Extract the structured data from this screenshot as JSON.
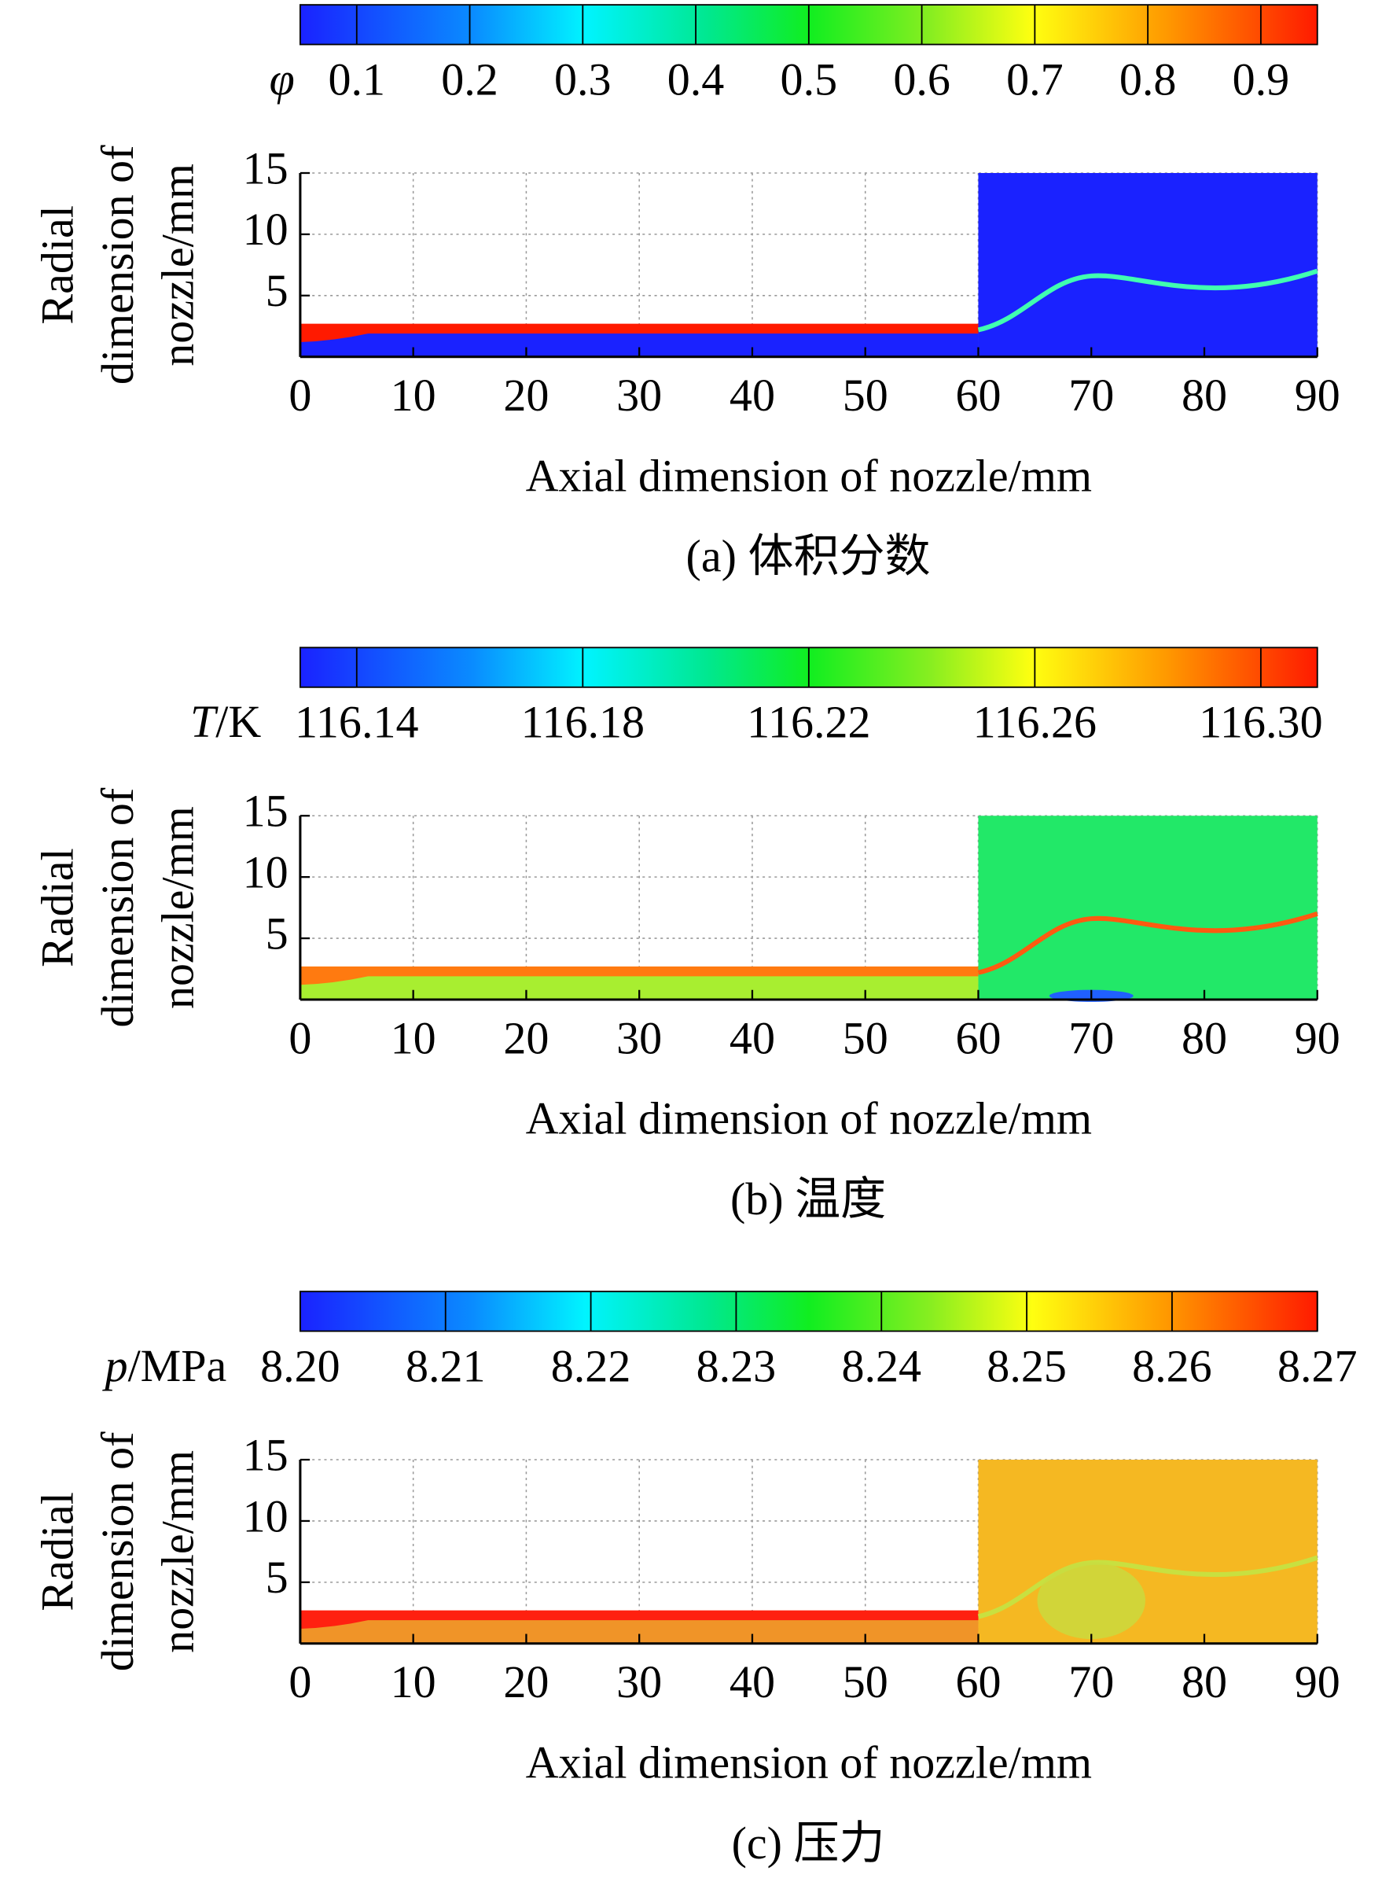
{
  "chart_data": [
    {
      "type": "contour",
      "colorbar": {
        "symbol": "φ",
        "clim": [
          0.05,
          0.95
        ],
        "ticks": [
          0.1,
          0.2,
          0.3,
          0.4,
          0.5,
          0.6,
          0.7,
          0.8,
          0.9
        ]
      },
      "xlabel": "Axial dimension of nozzle/mm",
      "ylabel": [
        "Radial",
        "dimension of",
        "nozzle/mm"
      ],
      "xlim": [
        0,
        90
      ],
      "xticks": [
        0,
        10,
        20,
        30,
        40,
        50,
        60,
        70,
        80,
        90
      ],
      "ylim": [
        0,
        15
      ],
      "yticks": [
        5,
        10,
        15
      ],
      "grid": true,
      "caption": "(a) 体积分数"
    },
    {
      "type": "contour",
      "colorbar": {
        "symbol": "T",
        "unit": "/K",
        "clim": [
          116.13,
          116.31
        ],
        "ticks": [
          116.14,
          116.18,
          116.22,
          116.26,
          {
            "value": 116.3,
            "label": "116.30"
          }
        ]
      },
      "xlabel": "Axial dimension of nozzle/mm",
      "ylabel": [
        "Radial",
        "dimension of",
        "nozzle/mm"
      ],
      "xlim": [
        0,
        90
      ],
      "xticks": [
        0,
        10,
        20,
        30,
        40,
        50,
        60,
        70,
        80,
        90
      ],
      "ylim": [
        0,
        15
      ],
      "yticks": [
        5,
        10,
        15
      ],
      "grid": true,
      "caption": "(b) 温度"
    },
    {
      "type": "contour",
      "colorbar": {
        "symbol": "p",
        "unit": "/MPa",
        "clim": [
          8.2,
          8.27
        ],
        "ticks": [
          {
            "value": 8.2,
            "label": "8.20"
          },
          8.21,
          8.22,
          8.23,
          8.24,
          8.25,
          8.26,
          8.27
        ]
      },
      "xlabel": "Axial dimension of nozzle/mm",
      "ylabel": [
        "Radial",
        "dimension of",
        "nozzle/mm"
      ],
      "xlim": [
        0,
        90
      ],
      "xticks": [
        0,
        10,
        20,
        30,
        40,
        50,
        60,
        70,
        80,
        90
      ],
      "ylim": [
        0,
        15
      ],
      "yticks": [
        5,
        10,
        15
      ],
      "grid": true,
      "caption": "(c) 压力"
    }
  ]
}
